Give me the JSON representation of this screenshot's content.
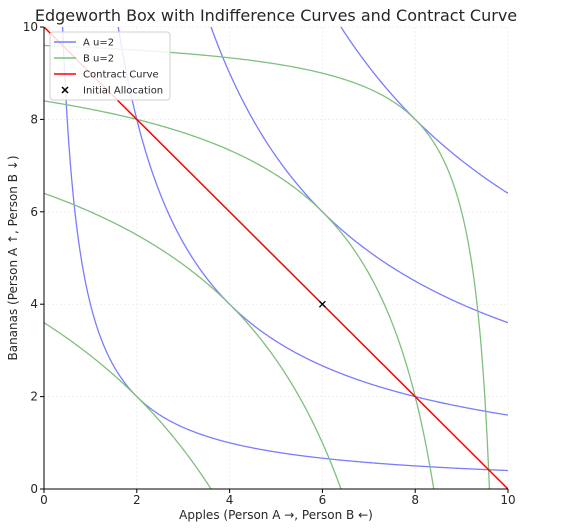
{
  "chart_data": {
    "type": "line",
    "title": "Edgeworth Box with Indifference Curves and Contract Curve",
    "xlabel": "Apples (Person A →, Person B ←)",
    "ylabel": "Bananas (Person A ↑, Person B ↓)",
    "xlim": [
      0,
      10
    ],
    "ylim": [
      0,
      10
    ],
    "xticks": [
      0,
      2,
      4,
      6,
      8,
      10
    ],
    "yticks": [
      0,
      2,
      4,
      6,
      8,
      10
    ],
    "grid": true,
    "legend_position": "upper-left",
    "colors": {
      "a_curves": "#7b7bff",
      "b_curves": "#7fbf7f",
      "contract": "#ff0000",
      "initial": "#000000",
      "text": "#262626"
    },
    "legend": [
      {
        "label": "A u=2",
        "kind": "line",
        "color": "#7b7bff"
      },
      {
        "label": "B u=2",
        "kind": "line",
        "color": "#7fbf7f"
      },
      {
        "label": "Contract Curve",
        "kind": "line",
        "color": "#ff0000"
      },
      {
        "label": "Initial Allocation",
        "kind": "marker",
        "color": "#000000"
      }
    ],
    "series": [
      {
        "family": "A",
        "utility": 2,
        "equation": "x*y = u^2"
      },
      {
        "family": "A",
        "utility": 4,
        "equation": "x*y = u^2"
      },
      {
        "family": "A",
        "utility": 6,
        "equation": "x*y = u^2"
      },
      {
        "family": "A",
        "utility": 8,
        "equation": "x*y = u^2"
      },
      {
        "family": "B",
        "utility": 2,
        "equation": "(10-x)*(10-y) = u^2"
      },
      {
        "family": "B",
        "utility": 4,
        "equation": "(10-x)*(10-y) = u^2"
      },
      {
        "family": "B",
        "utility": 6,
        "equation": "(10-x)*(10-y) = u^2"
      },
      {
        "family": "B",
        "utility": 8,
        "equation": "(10-x)*(10-y) = u^2"
      }
    ],
    "contract_curve": {
      "x": [
        0,
        10
      ],
      "y": [
        10,
        0
      ]
    },
    "initial_allocation": {
      "x": 6,
      "y": 4
    }
  }
}
